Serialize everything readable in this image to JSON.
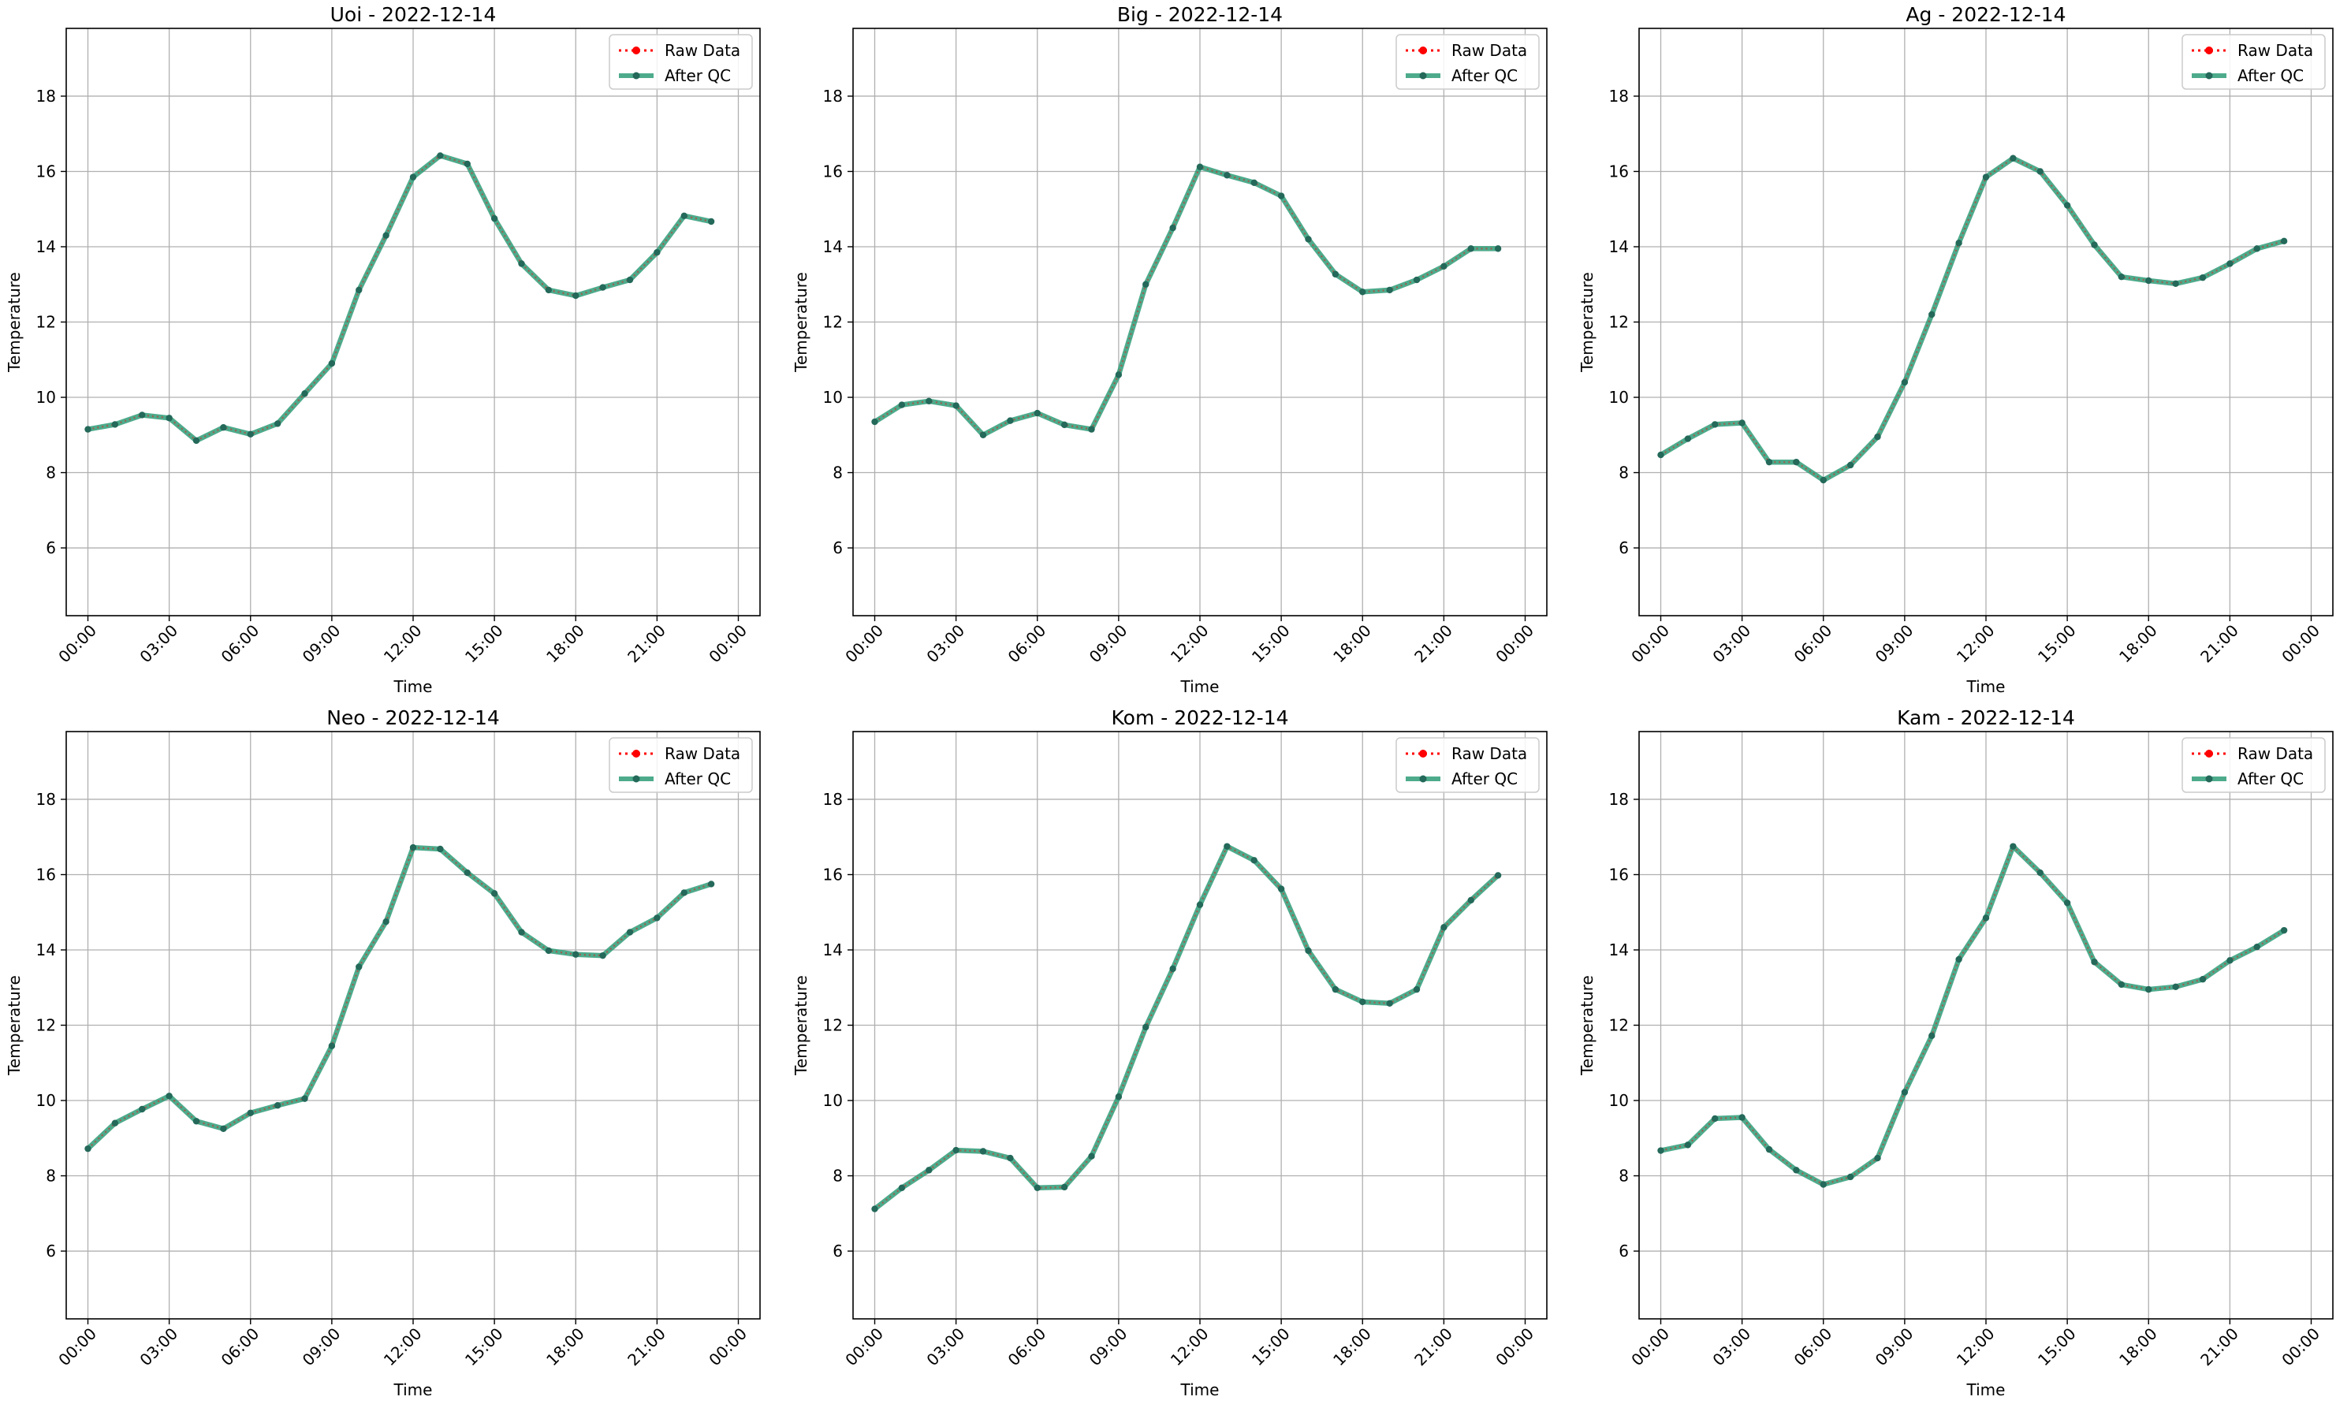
{
  "chart_data": [
    {
      "type": "line",
      "title": "Uoi - 2022-12-14",
      "xlabel": "Time",
      "ylabel": "Temperature",
      "ylim": [
        4.2,
        19.8
      ],
      "yticks": [
        "6",
        "8",
        "10",
        "12",
        "14",
        "16",
        "18"
      ],
      "xticks": [
        "00:00",
        "03:00",
        "06:00",
        "09:00",
        "12:00",
        "15:00",
        "18:00",
        "21:00",
        "00:00"
      ],
      "x": [
        "00:00",
        "01:00",
        "02:00",
        "03:00",
        "04:00",
        "05:00",
        "06:00",
        "07:00",
        "08:00",
        "09:00",
        "10:00",
        "11:00",
        "12:00",
        "13:00",
        "14:00",
        "15:00",
        "16:00",
        "17:00",
        "18:00",
        "19:00",
        "20:00",
        "21:00",
        "22:00",
        "23:00"
      ],
      "series": [
        {
          "name": "Raw Data",
          "values": [
            9.15,
            9.28,
            9.53,
            9.45,
            8.85,
            9.2,
            9.02,
            9.3,
            10.1,
            10.9,
            12.85,
            14.3,
            15.85,
            16.42,
            16.2,
            14.75,
            13.55,
            12.85,
            12.7,
            12.92,
            13.12,
            13.85,
            14.82,
            14.67
          ]
        },
        {
          "name": "After QC",
          "values": [
            9.15,
            9.28,
            9.53,
            9.45,
            8.85,
            9.2,
            9.02,
            9.3,
            10.1,
            10.9,
            12.85,
            14.3,
            15.85,
            16.42,
            16.2,
            14.75,
            13.55,
            12.85,
            12.7,
            12.92,
            13.12,
            13.85,
            14.82,
            14.67
          ]
        }
      ],
      "grid": true,
      "legend": "top-right"
    },
    {
      "type": "line",
      "title": "Big - 2022-12-14",
      "xlabel": "Time",
      "ylabel": "Temperature",
      "ylim": [
        4.2,
        19.8
      ],
      "yticks": [
        "6",
        "8",
        "10",
        "12",
        "14",
        "16",
        "18"
      ],
      "xticks": [
        "00:00",
        "03:00",
        "06:00",
        "09:00",
        "12:00",
        "15:00",
        "18:00",
        "21:00",
        "00:00"
      ],
      "x": [
        "00:00",
        "01:00",
        "02:00",
        "03:00",
        "04:00",
        "05:00",
        "06:00",
        "07:00",
        "08:00",
        "09:00",
        "10:00",
        "11:00",
        "12:00",
        "13:00",
        "14:00",
        "15:00",
        "16:00",
        "17:00",
        "18:00",
        "19:00",
        "20:00",
        "21:00",
        "22:00",
        "23:00"
      ],
      "series": [
        {
          "name": "Raw Data",
          "values": [
            9.35,
            9.8,
            9.9,
            9.78,
            9.0,
            9.38,
            9.58,
            9.27,
            9.15,
            10.6,
            13.0,
            14.5,
            16.12,
            15.9,
            15.7,
            15.35,
            14.2,
            13.27,
            12.8,
            12.85,
            13.12,
            13.48,
            13.95,
            13.95
          ]
        },
        {
          "name": "After QC",
          "values": [
            9.35,
            9.8,
            9.9,
            9.78,
            9.0,
            9.38,
            9.58,
            9.27,
            9.15,
            10.6,
            13.0,
            14.5,
            16.12,
            15.9,
            15.7,
            15.35,
            14.2,
            13.27,
            12.8,
            12.85,
            13.12,
            13.48,
            13.95,
            13.95
          ]
        }
      ],
      "grid": true,
      "legend": "top-right"
    },
    {
      "type": "line",
      "title": "Ag - 2022-12-14",
      "xlabel": "Time",
      "ylabel": "Temperature",
      "ylim": [
        4.2,
        19.8
      ],
      "yticks": [
        "6",
        "8",
        "10",
        "12",
        "14",
        "16",
        "18"
      ],
      "xticks": [
        "00:00",
        "03:00",
        "06:00",
        "09:00",
        "12:00",
        "15:00",
        "18:00",
        "21:00",
        "00:00"
      ],
      "x": [
        "00:00",
        "01:00",
        "02:00",
        "03:00",
        "04:00",
        "05:00",
        "06:00",
        "07:00",
        "08:00",
        "09:00",
        "10:00",
        "11:00",
        "12:00",
        "13:00",
        "14:00",
        "15:00",
        "16:00",
        "17:00",
        "18:00",
        "19:00",
        "20:00",
        "21:00",
        "22:00",
        "23:00"
      ],
      "series": [
        {
          "name": "Raw Data",
          "values": [
            8.47,
            8.9,
            9.28,
            9.32,
            8.28,
            8.28,
            7.8,
            8.2,
            8.95,
            10.4,
            12.2,
            14.1,
            15.85,
            16.35,
            16.0,
            15.1,
            14.05,
            13.2,
            13.1,
            13.02,
            13.18,
            13.55,
            13.95,
            14.15
          ]
        },
        {
          "name": "After QC",
          "values": [
            8.47,
            8.9,
            9.28,
            9.32,
            8.28,
            8.28,
            7.8,
            8.2,
            8.95,
            10.4,
            12.2,
            14.1,
            15.85,
            16.35,
            16.0,
            15.1,
            14.05,
            13.2,
            13.1,
            13.02,
            13.18,
            13.55,
            13.95,
            14.15
          ]
        }
      ],
      "grid": true,
      "legend": "top-right"
    },
    {
      "type": "line",
      "title": "Neo - 2022-12-14",
      "xlabel": "Time",
      "ylabel": "Temperature",
      "ylim": [
        4.2,
        19.8
      ],
      "yticks": [
        "6",
        "8",
        "10",
        "12",
        "14",
        "16",
        "18"
      ],
      "xticks": [
        "00:00",
        "03:00",
        "06:00",
        "09:00",
        "12:00",
        "15:00",
        "18:00",
        "21:00",
        "00:00"
      ],
      "x": [
        "00:00",
        "01:00",
        "02:00",
        "03:00",
        "04:00",
        "05:00",
        "06:00",
        "07:00",
        "08:00",
        "09:00",
        "10:00",
        "11:00",
        "12:00",
        "13:00",
        "14:00",
        "15:00",
        "16:00",
        "17:00",
        "18:00",
        "19:00",
        "20:00",
        "21:00",
        "22:00",
        "23:00"
      ],
      "series": [
        {
          "name": "Raw Data",
          "values": [
            8.72,
            9.4,
            9.77,
            10.12,
            9.45,
            9.25,
            9.67,
            9.87,
            10.05,
            11.45,
            13.55,
            14.75,
            16.72,
            16.68,
            16.05,
            15.5,
            14.47,
            13.98,
            13.88,
            13.85,
            14.47,
            14.85,
            15.52,
            15.75
          ]
        },
        {
          "name": "After QC",
          "values": [
            8.72,
            9.4,
            9.77,
            10.12,
            9.45,
            9.25,
            9.67,
            9.87,
            10.05,
            11.45,
            13.55,
            14.75,
            16.72,
            16.68,
            16.05,
            15.5,
            14.47,
            13.98,
            13.88,
            13.85,
            14.47,
            14.85,
            15.52,
            15.75
          ]
        }
      ],
      "grid": true,
      "legend": "top-right"
    },
    {
      "type": "line",
      "title": "Kom - 2022-12-14",
      "xlabel": "Time",
      "ylabel": "Temperature",
      "ylim": [
        4.2,
        19.8
      ],
      "yticks": [
        "6",
        "8",
        "10",
        "12",
        "14",
        "16",
        "18"
      ],
      "xticks": [
        "00:00",
        "03:00",
        "06:00",
        "09:00",
        "12:00",
        "15:00",
        "18:00",
        "21:00",
        "00:00"
      ],
      "x": [
        "00:00",
        "01:00",
        "02:00",
        "03:00",
        "04:00",
        "05:00",
        "06:00",
        "07:00",
        "08:00",
        "09:00",
        "10:00",
        "11:00",
        "12:00",
        "13:00",
        "14:00",
        "15:00",
        "16:00",
        "17:00",
        "18:00",
        "19:00",
        "20:00",
        "21:00",
        "22:00",
        "23:00"
      ],
      "series": [
        {
          "name": "Raw Data",
          "values": [
            7.12,
            7.68,
            8.15,
            8.68,
            8.65,
            8.47,
            7.68,
            7.7,
            8.52,
            10.1,
            11.95,
            13.5,
            15.2,
            16.75,
            16.38,
            15.62,
            13.98,
            12.95,
            12.62,
            12.58,
            12.95,
            14.6,
            15.32,
            15.98
          ]
        },
        {
          "name": "After QC",
          "values": [
            7.12,
            7.68,
            8.15,
            8.68,
            8.65,
            8.47,
            7.68,
            7.7,
            8.52,
            10.1,
            11.95,
            13.5,
            15.2,
            16.75,
            16.38,
            15.62,
            13.98,
            12.95,
            12.62,
            12.58,
            12.95,
            14.6,
            15.32,
            15.98
          ]
        }
      ],
      "grid": true,
      "legend": "top-right"
    },
    {
      "type": "line",
      "title": "Kam - 2022-12-14",
      "xlabel": "Time",
      "ylabel": "Temperature",
      "ylim": [
        4.2,
        19.8
      ],
      "yticks": [
        "6",
        "8",
        "10",
        "12",
        "14",
        "16",
        "18"
      ],
      "xticks": [
        "00:00",
        "03:00",
        "06:00",
        "09:00",
        "12:00",
        "15:00",
        "18:00",
        "21:00",
        "00:00"
      ],
      "x": [
        "00:00",
        "01:00",
        "02:00",
        "03:00",
        "04:00",
        "05:00",
        "06:00",
        "07:00",
        "08:00",
        "09:00",
        "10:00",
        "11:00",
        "12:00",
        "13:00",
        "14:00",
        "15:00",
        "16:00",
        "17:00",
        "18:00",
        "19:00",
        "20:00",
        "21:00",
        "22:00",
        "23:00"
      ],
      "series": [
        {
          "name": "Raw Data",
          "values": [
            8.67,
            8.82,
            9.52,
            9.55,
            8.7,
            8.15,
            7.77,
            7.97,
            8.47,
            10.22,
            11.72,
            13.75,
            14.85,
            16.75,
            16.05,
            15.25,
            13.68,
            13.08,
            12.95,
            13.02,
            13.22,
            13.72,
            14.08,
            14.52
          ]
        },
        {
          "name": "After QC",
          "values": [
            8.67,
            8.82,
            9.52,
            9.55,
            8.7,
            8.15,
            7.77,
            7.97,
            8.47,
            10.22,
            11.72,
            13.75,
            14.85,
            16.75,
            16.05,
            15.25,
            13.68,
            13.08,
            12.95,
            13.02,
            13.22,
            13.72,
            14.08,
            14.52
          ]
        }
      ],
      "grid": true,
      "legend": "top-right"
    }
  ],
  "colors": {
    "raw": "#ff0000",
    "qc": "#2e9c78",
    "qc_marker": "#24695a",
    "grid": "#b0b0b0",
    "axis": "#000000",
    "legend_border": "#cccccc"
  }
}
